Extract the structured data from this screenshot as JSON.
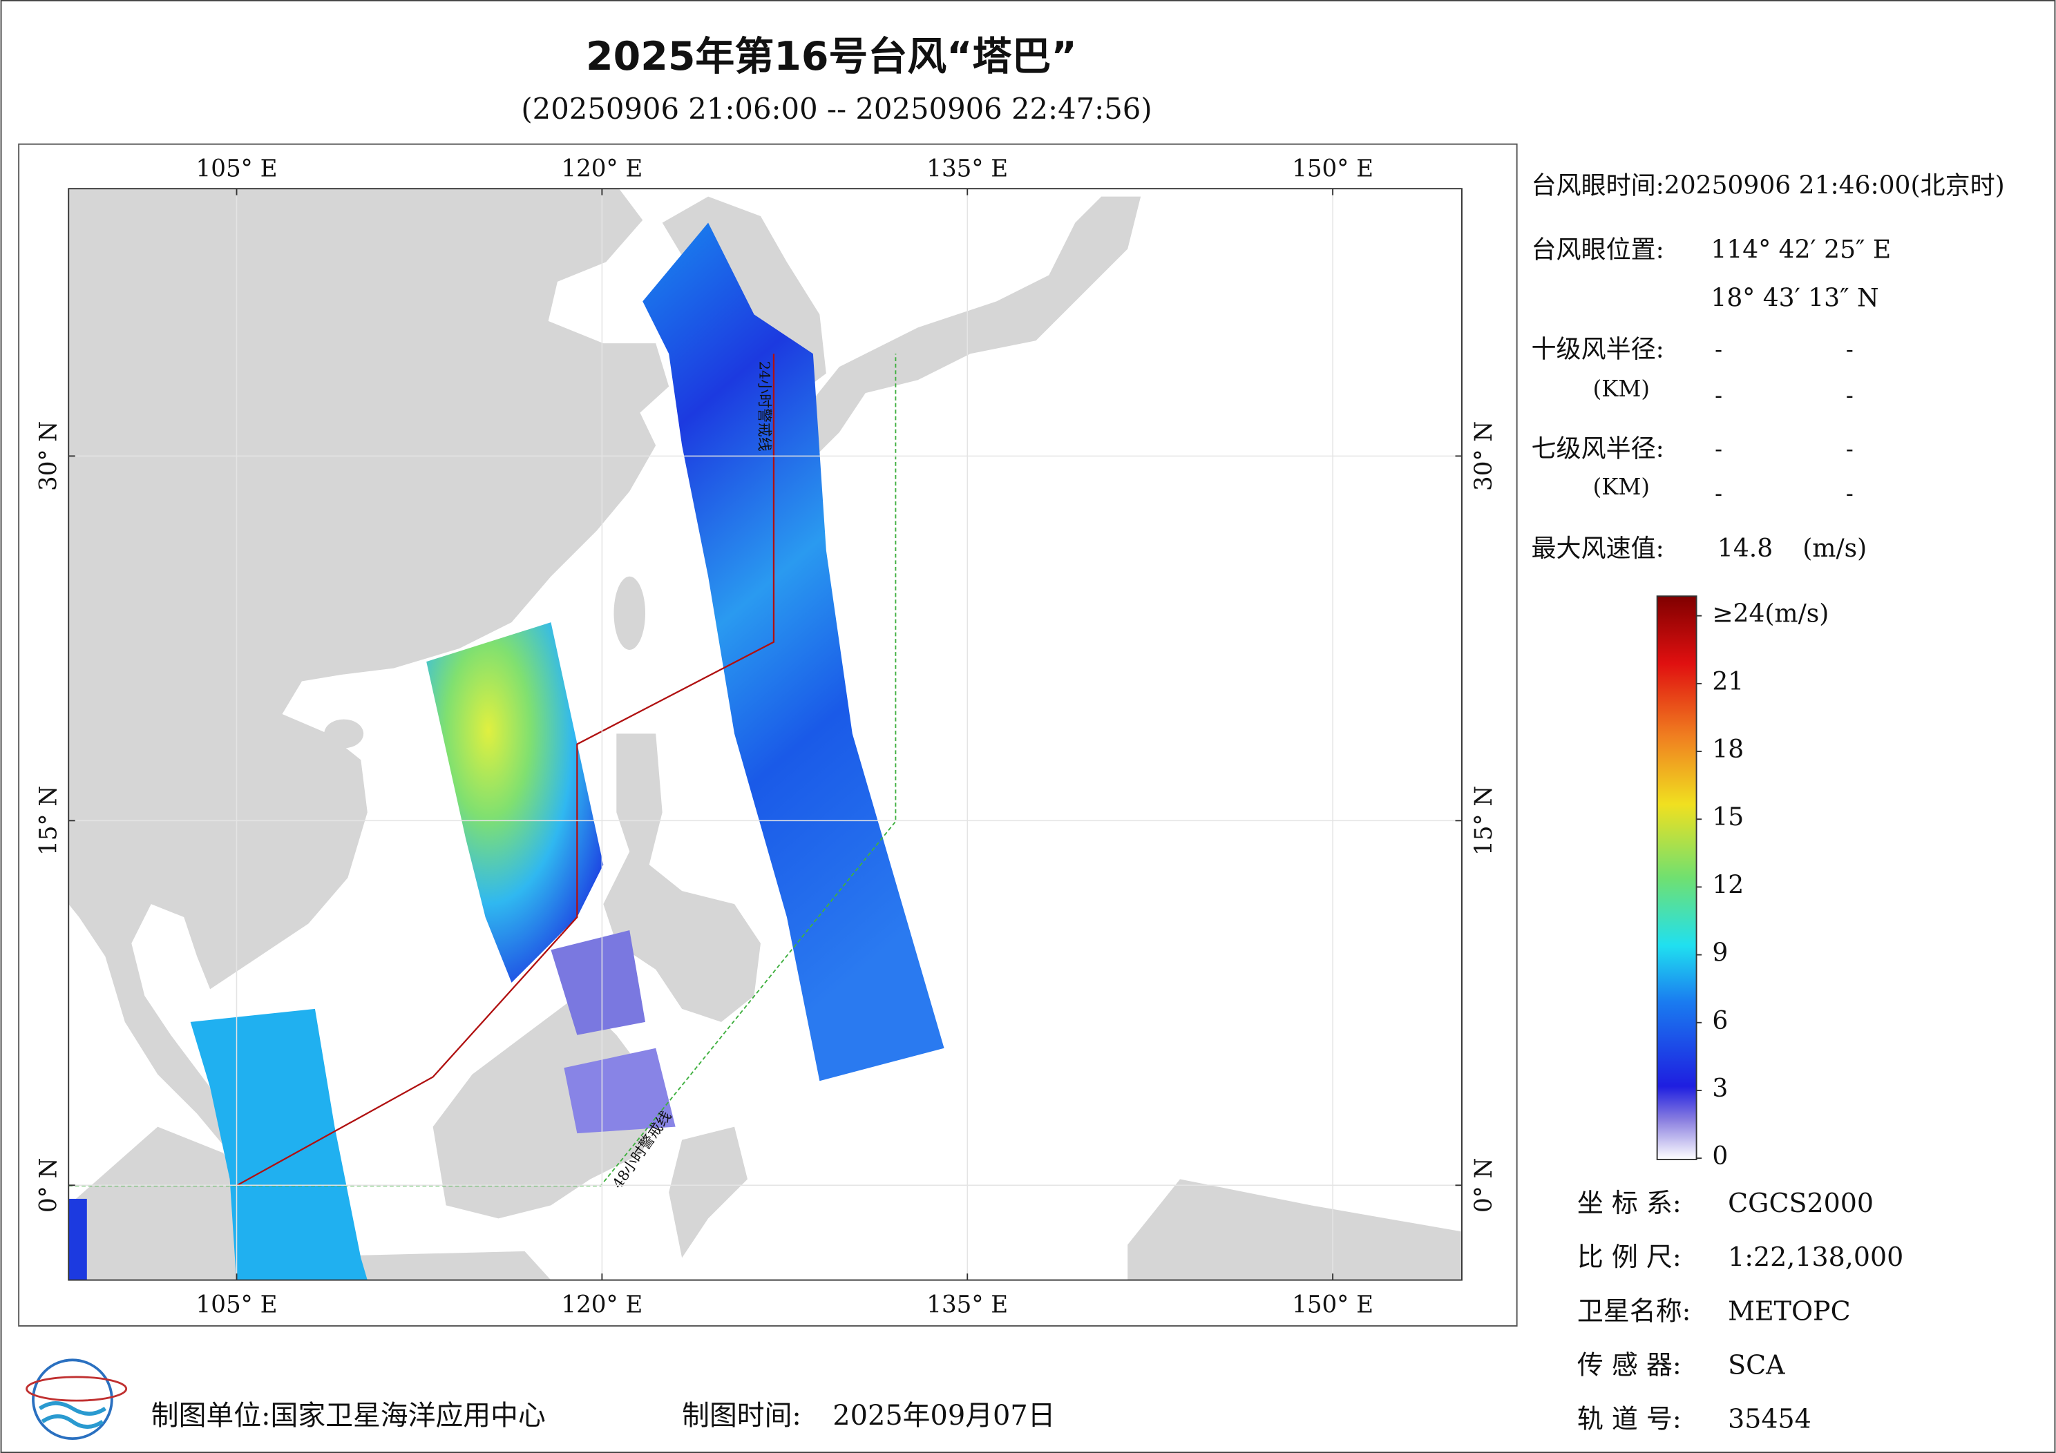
{
  "header": {
    "title": "2025年第16号台风“塔巴”",
    "subtitle": "(20250906 21:06:00 -- 20250906 22:47:56)"
  },
  "map": {
    "lon_lim": [
      98.1,
      155.3
    ],
    "lat_lim": [
      -3.9,
      41.0
    ],
    "lon_ticks": [
      {
        "value": 105,
        "label": "105° E"
      },
      {
        "value": 120,
        "label": "120° E"
      },
      {
        "value": 135,
        "label": "135° E"
      },
      {
        "value": 150,
        "label": "150° E"
      }
    ],
    "lat_ticks": [
      {
        "value": 0,
        "label": "0° N"
      },
      {
        "value": 15,
        "label": "15° N"
      },
      {
        "value": 30,
        "label": "30° N"
      }
    ],
    "warning_24h": "24小时警戒线",
    "warning_48h": "48小时警戒线"
  },
  "info": {
    "eye_time": "台风眼时间:20250906 21:46:00(北京时)",
    "eye_pos_label": "台风眼位置:",
    "eye_lon": "114° 42′ 25″ E",
    "eye_lat": "18° 43′ 13″ N",
    "r10_label": "十级风半径:",
    "r10": [
      "-",
      "-",
      "-",
      "-"
    ],
    "km": "(KM)",
    "r7_label": "七级风半径:",
    "r7": [
      "-",
      "-",
      "-",
      "-"
    ],
    "max_label": "最大风速值:",
    "max_value": "14.8",
    "max_unit": "(m/s)"
  },
  "colorbar": {
    "lim": [
      0,
      24
    ],
    "ticks": [
      {
        "value": 24,
        "label": "≥24(m/s)"
      },
      21,
      18,
      15,
      12,
      9,
      6,
      3,
      0
    ]
  },
  "meta": [
    [
      "坐 标 系:",
      "CGCS2000"
    ],
    [
      "比 例 尺:",
      "1:22,138,000"
    ],
    [
      "卫星名称:",
      "METOPC"
    ],
    [
      "传 感 器:",
      "SCA"
    ],
    [
      "轨 道 号:",
      "35454"
    ]
  ],
  "footer": {
    "unit": "制图单位:国家卫星海洋应用中心",
    "time_label": "制图时间:",
    "time": "2025年09月07日"
  }
}
